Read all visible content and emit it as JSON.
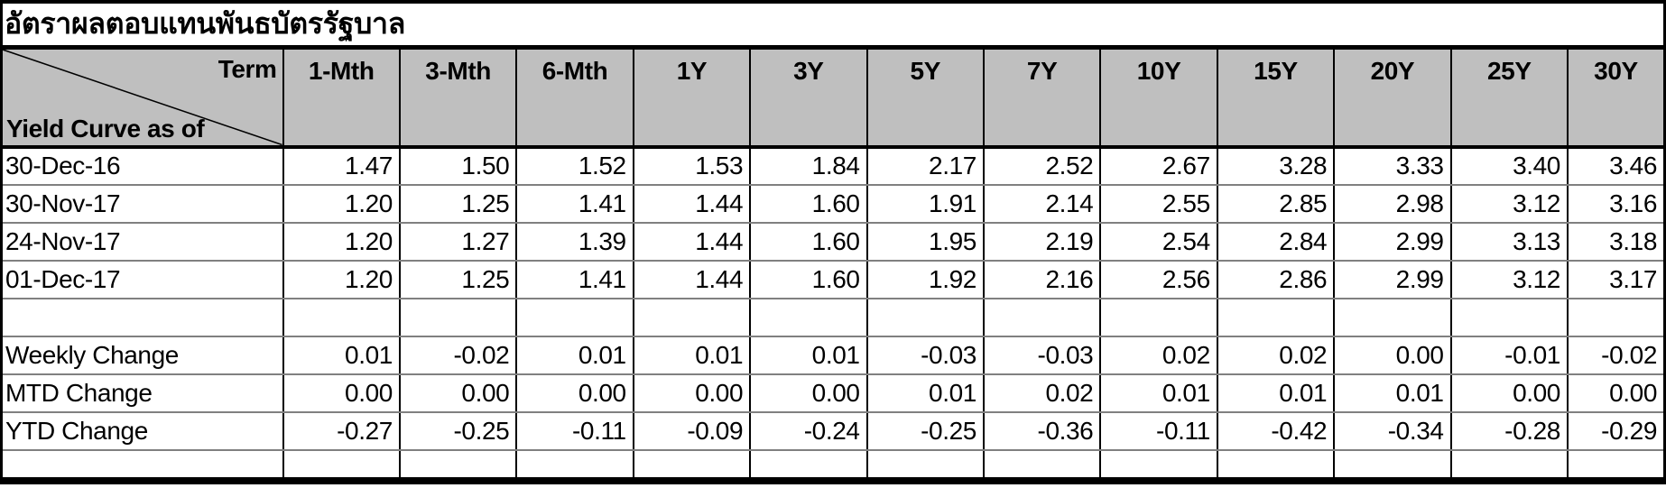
{
  "title": "อัตราผลตอบแทนพันธบัตรรัฐบาล",
  "colors": {
    "header_bg": "#bfbfbf",
    "gridline_gray": "#808080",
    "border_black": "#000000"
  },
  "chart_data": {
    "type": "table",
    "title": "อัตราผลตอบแทนพันธบัตรรัฐบาล",
    "corner_label_top": "Term",
    "corner_label_bottom": "Yield Curve as of",
    "columns": [
      "1-Mth",
      "3-Mth",
      "6-Mth",
      "1Y",
      "3Y",
      "5Y",
      "7Y",
      "10Y",
      "15Y",
      "20Y",
      "25Y",
      "30Y"
    ],
    "rows": [
      {
        "label": "30-Dec-16",
        "values": [
          "1.47",
          "1.50",
          "1.52",
          "1.53",
          "1.84",
          "2.17",
          "2.52",
          "2.67",
          "3.28",
          "3.33",
          "3.40",
          "3.46"
        ]
      },
      {
        "label": "30-Nov-17",
        "values": [
          "1.20",
          "1.25",
          "1.41",
          "1.44",
          "1.60",
          "1.91",
          "2.14",
          "2.55",
          "2.85",
          "2.98",
          "3.12",
          "3.16"
        ]
      },
      {
        "label": "24-Nov-17",
        "values": [
          "1.20",
          "1.27",
          "1.39",
          "1.44",
          "1.60",
          "1.95",
          "2.19",
          "2.54",
          "2.84",
          "2.99",
          "3.13",
          "3.18"
        ]
      },
      {
        "label": "01-Dec-17",
        "values": [
          "1.20",
          "1.25",
          "1.41",
          "1.44",
          "1.60",
          "1.92",
          "2.16",
          "2.56",
          "2.86",
          "2.99",
          "3.12",
          "3.17"
        ]
      },
      {
        "label": "",
        "values": [
          "",
          "",
          "",
          "",
          "",
          "",
          "",
          "",
          "",
          "",
          "",
          ""
        ]
      },
      {
        "label": "Weekly Change",
        "values": [
          "0.01",
          "-0.02",
          "0.01",
          "0.01",
          "0.01",
          "-0.03",
          "-0.03",
          "0.02",
          "0.02",
          "0.00",
          "-0.01",
          "-0.02"
        ]
      },
      {
        "label": "MTD Change",
        "values": [
          "0.00",
          "0.00",
          "0.00",
          "0.00",
          "0.00",
          "0.01",
          "0.02",
          "0.01",
          "0.01",
          "0.01",
          "0.00",
          "0.00"
        ]
      },
      {
        "label": "YTD Change",
        "values": [
          "-0.27",
          "-0.25",
          "-0.11",
          "-0.09",
          "-0.24",
          "-0.25",
          "-0.36",
          "-0.11",
          "-0.42",
          "-0.34",
          "-0.28",
          "-0.29"
        ]
      },
      {
        "label": "",
        "values": [
          "",
          "",
          "",
          "",
          "",
          "",
          "",
          "",
          "",
          "",
          "",
          ""
        ]
      }
    ]
  }
}
